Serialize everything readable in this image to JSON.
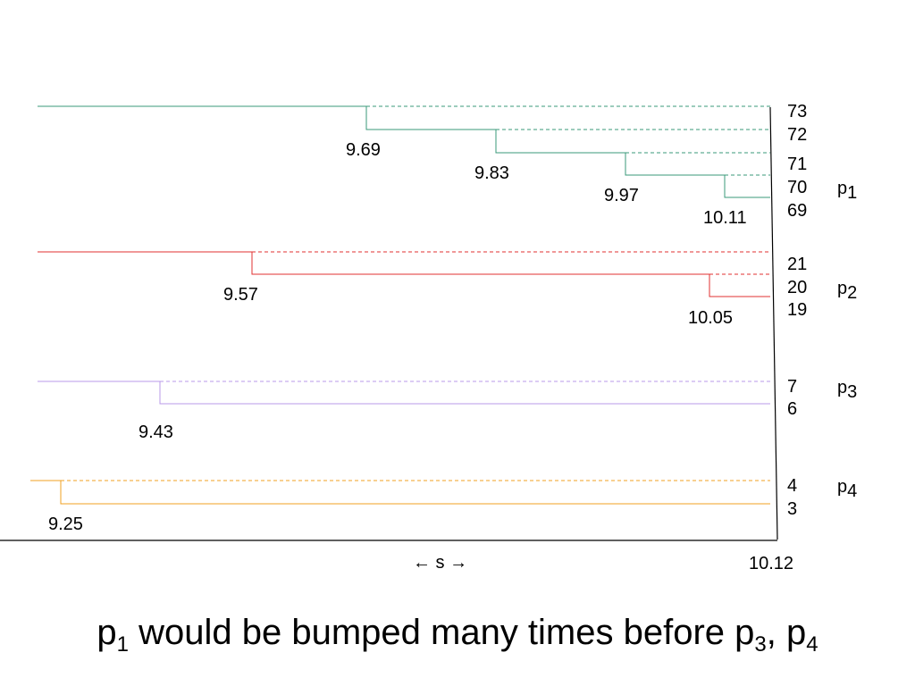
{
  "colors": {
    "p1": "#3a9a7a",
    "p2": "#e03030",
    "p3": "#b898e8",
    "p4": "#f0a020",
    "axis": "#000000"
  },
  "axis": {
    "arrow_label": "← s →",
    "end_label": "10.12"
  },
  "groups": [
    {
      "id": "p1",
      "label": "p",
      "label_sub": "1",
      "ids": [
        "73",
        "72",
        "71",
        "70",
        "69"
      ],
      "splits": [
        "9.69",
        "9.83",
        "9.97",
        "10.11"
      ]
    },
    {
      "id": "p2",
      "label": "p",
      "label_sub": "2",
      "ids": [
        "21",
        "20",
        "19"
      ],
      "splits": [
        "9.57",
        "10.05"
      ]
    },
    {
      "id": "p3",
      "label": "p",
      "label_sub": "3",
      "ids": [
        "7",
        "6"
      ],
      "splits": [
        "9.43"
      ]
    },
    {
      "id": "p4",
      "label": "p",
      "label_sub": "4",
      "ids": [
        "4",
        "3"
      ],
      "splits": [
        "9.25"
      ]
    }
  ],
  "caption": {
    "p1": "p",
    "p1_sub": "1",
    "text": " would be bumped many times before p",
    "p3_sub": "3",
    "sep": ", p",
    "p4_sub": "4"
  }
}
